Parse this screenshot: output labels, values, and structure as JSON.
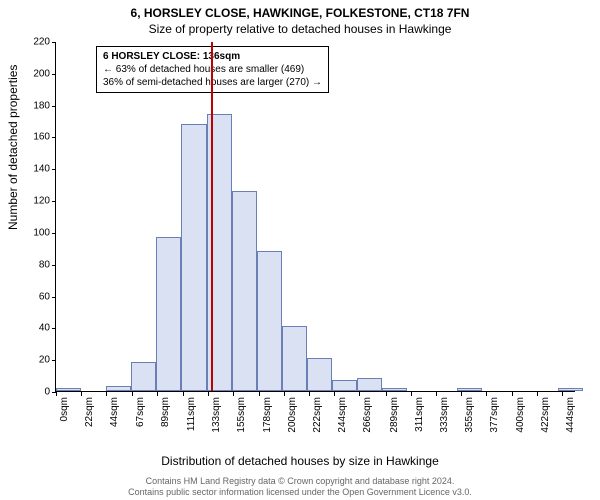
{
  "header": {
    "line1": "6, HORSLEY CLOSE, HAWKINGE, FOLKESTONE, CT18 7FN",
    "line2": "Size of property relative to detached houses in Hawkinge"
  },
  "axes": {
    "ylabel": "Number of detached properties",
    "xlabel": "Distribution of detached houses by size in Hawkinge"
  },
  "chart": {
    "type": "histogram",
    "bar_fill": "#d9e1f2",
    "bar_stroke": "#6a7fb5",
    "background": "#ffffff",
    "xlim": [
      0,
      456
    ],
    "ylim": [
      0,
      220
    ],
    "yticks": [
      0,
      20,
      40,
      60,
      80,
      100,
      120,
      140,
      160,
      180,
      200,
      220
    ],
    "xticks": [
      0,
      22,
      44,
      67,
      89,
      111,
      133,
      155,
      178,
      200,
      222,
      244,
      266,
      289,
      311,
      333,
      355,
      377,
      400,
      422,
      444
    ],
    "xtick_suffix": "sqm",
    "bin_width": 22,
    "values": [
      2,
      0,
      3,
      18,
      97,
      168,
      174,
      126,
      88,
      41,
      21,
      7,
      8,
      2,
      0,
      0,
      2,
      0,
      0,
      0,
      2
    ],
    "reference_line": {
      "x": 136,
      "color": "#c00000",
      "width": 2
    }
  },
  "annotation": {
    "title": "6 HORSLEY CLOSE: 136sqm",
    "line1": "← 63% of detached houses are smaller (469)",
    "line2": "36% of semi-detached houses are larger (270) →"
  },
  "footer": {
    "line1": "Contains HM Land Registry data © Crown copyright and database right 2024.",
    "line2": "Contains public sector information licensed under the Open Government Licence v3.0."
  },
  "style": {
    "title_fontsize": 12,
    "label_fontsize": 12,
    "tick_fontsize": 10,
    "footer_color": "#666666"
  }
}
